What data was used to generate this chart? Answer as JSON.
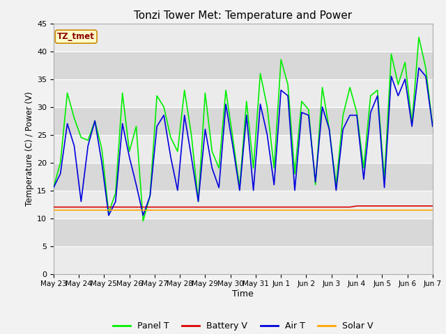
{
  "title": "Tonzi Tower Met: Temperature and Power",
  "xlabel": "Time",
  "ylabel": "Temperature (C) / Power (V)",
  "annotation": "TZ_tmet",
  "ylim": [
    0,
    45
  ],
  "yticks": [
    0,
    5,
    10,
    15,
    20,
    25,
    30,
    35,
    40,
    45
  ],
  "xtick_labels": [
    "May 23",
    "May 24",
    "May 25",
    "May 26",
    "May 27",
    "May 28",
    "May 29",
    "May 30",
    "May 31",
    "Jun 1",
    "Jun 2",
    "Jun 3",
    "Jun 4",
    "Jun 5",
    "Jun 6",
    "Jun 7"
  ],
  "colors": {
    "panel_t": "#00EE00",
    "battery_v": "#DD0000",
    "air_t": "#0000DD",
    "solar_v": "#FFA500"
  },
  "legend_labels": [
    "Panel T",
    "Battery V",
    "Air T",
    "Solar V"
  ],
  "band_light": "#EBEBEB",
  "band_dark": "#D8D8D8",
  "fig_bg": "#F2F2F2",
  "panel_t": [
    15.5,
    20,
    32.5,
    28,
    24.5,
    24,
    27.5,
    22.5,
    11,
    14.5,
    32.5,
    22,
    26.5,
    9.5,
    14,
    32,
    30,
    24.5,
    22,
    33,
    25,
    13,
    32.5,
    22,
    19,
    33,
    24.5,
    15.5,
    31,
    19,
    36,
    30,
    19,
    38.5,
    34,
    18,
    31,
    29.5,
    16,
    33.5,
    26,
    16,
    28.5,
    33.5,
    29,
    19,
    32,
    33,
    17,
    39.5,
    34,
    38,
    27,
    42.5,
    37,
    26.5
  ],
  "battery_v": [
    12,
    12,
    12,
    12,
    12,
    12,
    12,
    12,
    12,
    12,
    12,
    12,
    12,
    12,
    12,
    12,
    12,
    12,
    12,
    12,
    12,
    12,
    12,
    12,
    12,
    12,
    12,
    12,
    12,
    12,
    12,
    12,
    12,
    12,
    12,
    12,
    12,
    12,
    12,
    12,
    12,
    12,
    12,
    12,
    12.2,
    12.2,
    12.2,
    12.2,
    12.2,
    12.2,
    12.2,
    12.2,
    12.2,
    12.2,
    12.2,
    12.2
  ],
  "air_t": [
    15.5,
    18,
    27,
    23,
    13,
    23,
    27.5,
    20,
    10.5,
    13,
    27,
    21,
    16,
    10.5,
    14,
    26.5,
    28.5,
    21,
    15,
    28.5,
    21,
    13,
    26,
    19,
    15.5,
    30.5,
    23,
    15,
    28.5,
    15,
    30.5,
    25,
    16,
    33,
    32,
    15,
    29,
    28.5,
    16.5,
    30,
    26,
    15,
    26,
    28.5,
    28.5,
    17,
    29,
    32,
    15.5,
    35.5,
    32,
    35,
    26.5,
    37,
    35.5,
    26.5
  ],
  "solar_v": [
    11.5,
    11.5,
    11.5,
    11.5,
    11.5,
    11.5,
    11.5,
    11.5,
    11.5,
    11.5,
    11.5,
    11.5,
    11.5,
    11.5,
    11.5,
    11.5,
    11.5,
    11.5,
    11.5,
    11.5,
    11.5,
    11.5,
    11.5,
    11.5,
    11.5,
    11.5,
    11.5,
    11.5,
    11.5,
    11.5,
    11.5,
    11.5,
    11.5,
    11.5,
    11.5,
    11.5,
    11.5,
    11.5,
    11.5,
    11.5,
    11.5,
    11.5,
    11.5,
    11.5,
    11.5,
    11.5,
    11.5,
    11.5,
    11.5,
    11.5,
    11.5,
    11.5,
    11.5,
    11.5,
    11.5,
    11.5
  ]
}
